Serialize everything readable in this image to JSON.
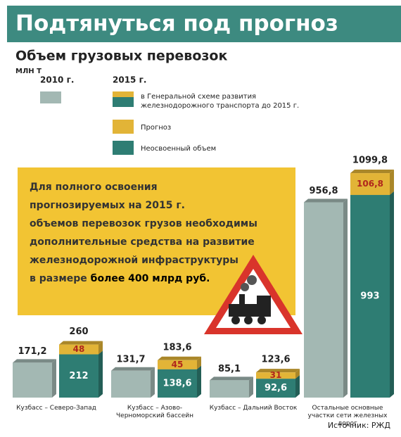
{
  "header": {
    "title": "Подтянуться под прогноз"
  },
  "chart_data": {
    "type": "bar",
    "title": "Объем грузовых перевозок",
    "unit_label": "МЛН Т",
    "legend_2015_label": "2015 г.",
    "legend_scheme_lines": [
      "в Генеральной схеме развития",
      "железнодорожного транспорта до 2015 г."
    ],
    "categories": [
      "Кузбасс – Северо-Запад",
      "Кузбасс – Азово-Черноморский бассейн",
      "Кузбасс – Дальний Восток",
      "Остальные основные участки сети железных дорог"
    ],
    "series": [
      {
        "name": "2010 г.",
        "color": "#a3b8b3",
        "values": [
          171.2,
          131.7,
          85.1,
          956.8
        ],
        "value_labels": [
          "171,2",
          "131,7",
          "85,1",
          "956,8"
        ]
      },
      {
        "name": "Неосвоенный объем",
        "color": "#2e7d73",
        "values": [
          212,
          138.6,
          92.6,
          993
        ],
        "value_labels": [
          "212",
          "138,6",
          "92,6",
          "993"
        ]
      },
      {
        "name": "Прогноз",
        "color": "#e2b437",
        "values": [
          48,
          45,
          31,
          106.8
        ],
        "value_labels": [
          "48",
          "45",
          "31",
          "106,8"
        ]
      }
    ],
    "totals": [
      260,
      183.6,
      123.6,
      1099.8
    ],
    "total_labels": [
      "260",
      "183,6",
      "123,6",
      "1099,8"
    ]
  },
  "callout": {
    "lines": [
      "Для полного освоения",
      "прогнозируемых на 2015 г.",
      "объемов перевозок грузов необходимы",
      "дополнительные средства на развитие",
      "железнодорожной инфраструктуры"
    ],
    "last_prefix": "в размере",
    "last_bold": "более 400 млрд руб."
  },
  "source": "Источник: РЖД"
}
